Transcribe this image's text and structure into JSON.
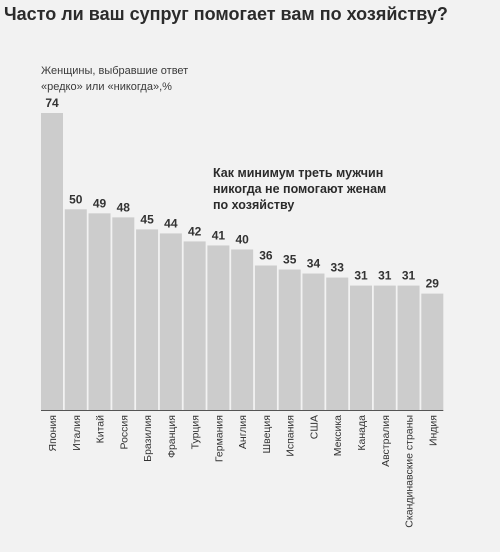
{
  "chart_data": {
    "type": "bar",
    "title": "Часто ли ваш супруг помогает вам по хозяйству?",
    "subtitle_lines": [
      "Женщины, выбравшие ответ",
      "«редко» или «никогда»,%"
    ],
    "annotation_lines": [
      "Как минимум треть мужчин",
      "никогда не помогают женам",
      "по хозяйству"
    ],
    "categories": [
      "Япония",
      "Италия",
      "Китай",
      "Россия",
      "Бразилия",
      "Франция",
      "Турция",
      "Германия",
      "Англия",
      "Швеция",
      "Испания",
      "США",
      "Мексика",
      "Канада",
      "Австралия",
      "Скандинавские страны",
      "Индия"
    ],
    "values": [
      74,
      50,
      49,
      48,
      45,
      44,
      42,
      41,
      40,
      36,
      35,
      34,
      33,
      31,
      31,
      31,
      29
    ],
    "ylim": [
      0,
      74
    ],
    "grid": false,
    "colors": {
      "bar": "#cccccc",
      "background": "#f2f2f2",
      "text": "#333333"
    }
  }
}
